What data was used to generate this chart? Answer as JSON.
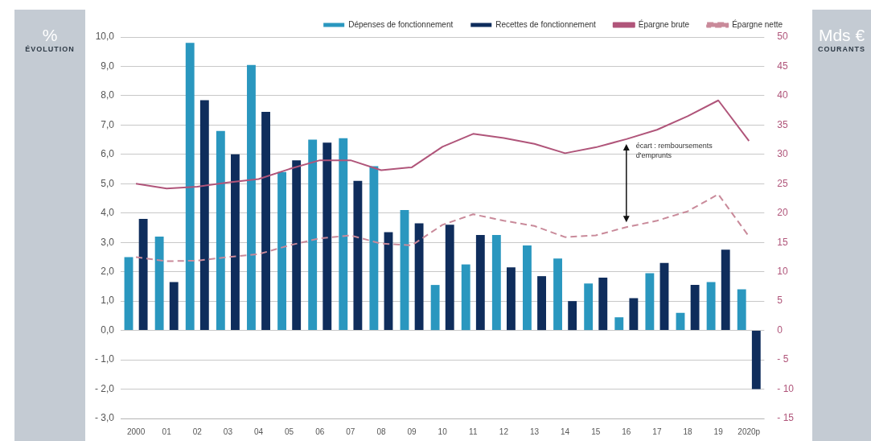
{
  "chart_data": {
    "type": "bar",
    "ylabel": "% ÉVOLUTION",
    "y2label": "Mds € COURANTS",
    "categories": [
      "2000",
      "01",
      "02",
      "03",
      "04",
      "05",
      "06",
      "07",
      "08",
      "09",
      "10",
      "11",
      "12",
      "13",
      "14",
      "15",
      "16",
      "17",
      "18",
      "19",
      "2020p"
    ],
    "series": [
      {
        "name": "Dépenses de fonctionnement",
        "color": "#2a97bf",
        "values": [
          2.5,
          3.2,
          9.8,
          6.8,
          9.05,
          5.4,
          6.5,
          6.55,
          5.6,
          4.1,
          1.55,
          2.25,
          3.25,
          2.9,
          2.45,
          1.6,
          0.45,
          1.95,
          0.6,
          1.65,
          1.4
        ]
      },
      {
        "name": "Recettes de fonctionnement",
        "color": "#0f2d5c",
        "values": [
          3.8,
          1.65,
          7.85,
          6.0,
          7.45,
          5.8,
          6.4,
          5.1,
          3.35,
          3.65,
          3.6,
          3.25,
          2.15,
          1.85,
          1.0,
          1.8,
          1.1,
          2.3,
          1.55,
          2.75,
          -2.0
        ]
      },
      {
        "name": "Épargne brute",
        "type": "line",
        "axis": "y2",
        "line_style": "solid",
        "color": "#b0557a",
        "values": [
          25,
          24.2,
          24.5,
          25.2,
          25.8,
          27.5,
          29,
          29,
          27.3,
          27.8,
          31.3,
          33.5,
          32.8,
          31.8,
          30.2,
          31.2,
          32.6,
          34.2,
          36.5,
          39.2,
          32.3
        ]
      },
      {
        "name": "Épargne nette",
        "type": "line",
        "axis": "y2",
        "line_style": "dashed",
        "color": "#c98a9a",
        "values": [
          12.5,
          11.8,
          11.9,
          12.5,
          13,
          14.5,
          15.7,
          16.2,
          14.8,
          14.5,
          18,
          19.8,
          18.7,
          17.8,
          15.9,
          16.2,
          17.6,
          18.7,
          20.3,
          23.2,
          16
        ]
      }
    ],
    "ylim": [
      -3,
      10
    ],
    "yticks": [
      {
        "value": -3,
        "label": "- 3,0"
      },
      {
        "value": -2,
        "label": "- 2,0"
      },
      {
        "value": -1,
        "label": "- 1,0"
      },
      {
        "value": 0,
        "label": "0,0"
      },
      {
        "value": 1,
        "label": "1,0"
      },
      {
        "value": 2,
        "label": "2,0"
      },
      {
        "value": 3,
        "label": "3,0"
      },
      {
        "value": 4,
        "label": "4,0"
      },
      {
        "value": 5,
        "label": "5,0"
      },
      {
        "value": 6,
        "label": "6,0"
      },
      {
        "value": 7,
        "label": "7,0"
      },
      {
        "value": 8,
        "label": "8,0"
      },
      {
        "value": 9,
        "label": "9,0"
      },
      {
        "value": 10,
        "label": "10,0"
      }
    ],
    "y2lim": [
      -15,
      50
    ],
    "y2ticks": [
      {
        "value": -15,
        "label": "- 15"
      },
      {
        "value": -10,
        "label": "- 10"
      },
      {
        "value": -5,
        "label": "- 5"
      },
      0,
      5,
      10,
      15,
      20,
      25,
      30,
      35,
      40,
      45,
      50
    ],
    "annotations": [
      "écart : remboursements d'emprunts"
    ],
    "grid": "y",
    "legend": "top",
    "marker": "none"
  }
}
